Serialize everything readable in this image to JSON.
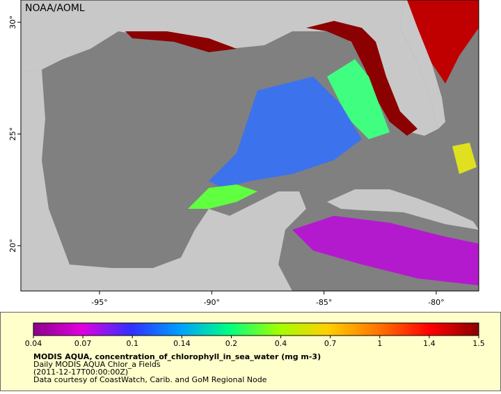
{
  "map": {
    "credit": "NOAA/AOML",
    "lon_ticks": [
      "-95°",
      "-90°",
      "-85°",
      "-80°"
    ],
    "lat_ticks": [
      "30°",
      "25°",
      "20°"
    ],
    "colorbar_ticks": [
      "0.04",
      "0.07",
      "0.1",
      "0.14",
      "0.2",
      "0.4",
      "0.7",
      "1",
      "1.4",
      "1.5"
    ],
    "title": "MODIS AQUA, concentration_of_chlorophyll_in_sea_water (mg m-3)",
    "subtitle": "Daily MODIS AQUA Chlor_a Fields",
    "time": "(2011-12-17T00:00:00Z)",
    "courtesy": "Data courtesy of CoastWatch, Carib. and GoM Regional Node"
  }
}
